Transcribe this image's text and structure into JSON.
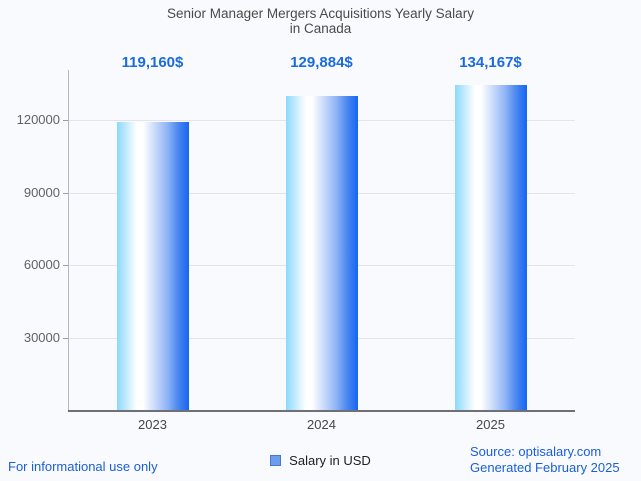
{
  "title": {
    "line1": "Senior Manager Mergers Acquisitions Yearly Salary",
    "line2": "in Canada"
  },
  "chart_data": {
    "type": "bar",
    "title": "Senior Manager Mergers Acquisitions Yearly Salary in Canada",
    "categories": [
      "2023",
      "2024",
      "2025"
    ],
    "values": [
      119160,
      129884,
      134167
    ],
    "value_labels": [
      "119,160$",
      "129,884$",
      "134,167$"
    ],
    "series": [
      {
        "name": "Salary in USD",
        "values": [
          119160,
          129884,
          134167
        ]
      }
    ],
    "xlabel": "",
    "ylabel": "",
    "ylim": [
      0,
      137700
    ],
    "yticks": [
      30000,
      60000,
      90000,
      120000
    ],
    "ytick_labels": [
      "30000",
      "60000",
      "90000",
      "120000"
    ],
    "grid": true,
    "legend_position": "bottom",
    "annotation_color": "#1b6be0",
    "bar_gradient": [
      "#8cd8fc",
      "#ffffff",
      "#1565f2"
    ]
  },
  "legend": {
    "label": "Salary in USD",
    "swatch_color": "#6d9eeb",
    "swatch_border": "#4179d4"
  },
  "footer": {
    "left": "For informational use only",
    "source": "Source: optisalary.com",
    "generated": "Generated February 2025"
  },
  "colors": {
    "background": "#f9fafd",
    "title_text": "#4a4a4a",
    "axis_label": "#5f6368",
    "gridline": "#e3e5ea",
    "accent_blue": "#1b6be0"
  }
}
